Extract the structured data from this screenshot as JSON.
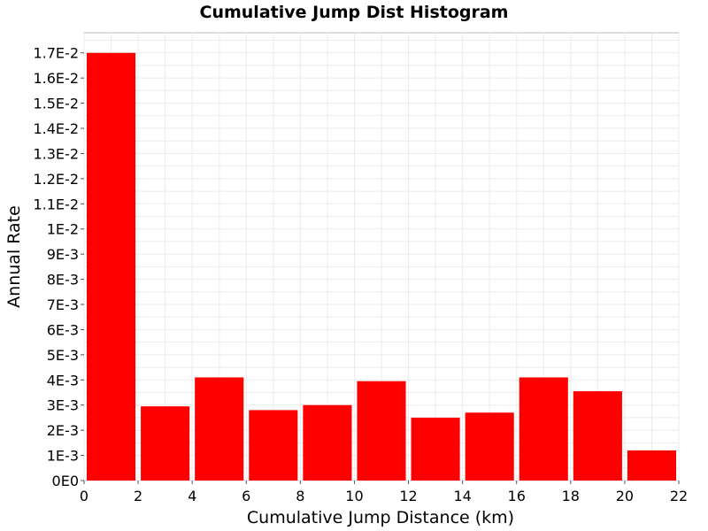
{
  "chart_data": {
    "type": "bar",
    "title": "Cumulative Jump Dist Histogram",
    "xlabel": "Cumulative Jump Distance (km)",
    "ylabel": "Annual Rate",
    "xlim": [
      0,
      22
    ],
    "ylim": [
      0,
      0.0178
    ],
    "x_ticks": [
      0,
      2,
      4,
      6,
      8,
      10,
      12,
      14,
      16,
      18,
      20,
      22
    ],
    "y_ticks": [
      0,
      0.001,
      0.002,
      0.003,
      0.004,
      0.005,
      0.006,
      0.007,
      0.008,
      0.009,
      0.01,
      0.011,
      0.012,
      0.013,
      0.014,
      0.015,
      0.016,
      0.017
    ],
    "y_tick_labels": [
      "0E0",
      "1E-3",
      "2E-3",
      "3E-3",
      "4E-3",
      "5E-3",
      "6E-3",
      "7E-3",
      "8E-3",
      "9E-3",
      "1E-2",
      "1.1E-2",
      "1.2E-2",
      "1.3E-2",
      "1.4E-2",
      "1.5E-2",
      "1.6E-2",
      "1.7E-2"
    ],
    "bin_width": 2,
    "bins": [
      {
        "x": 1,
        "value": 0.017
      },
      {
        "x": 3,
        "value": 0.00295
      },
      {
        "x": 5,
        "value": 0.0041
      },
      {
        "x": 7,
        "value": 0.0028
      },
      {
        "x": 9,
        "value": 0.003
      },
      {
        "x": 11,
        "value": 0.00395
      },
      {
        "x": 13,
        "value": 0.0025
      },
      {
        "x": 15,
        "value": 0.0027
      },
      {
        "x": 17,
        "value": 0.0041
      },
      {
        "x": 19,
        "value": 0.00355
      },
      {
        "x": 21,
        "value": 0.0012
      }
    ],
    "bar_color": "#ff0000",
    "grid": true
  }
}
